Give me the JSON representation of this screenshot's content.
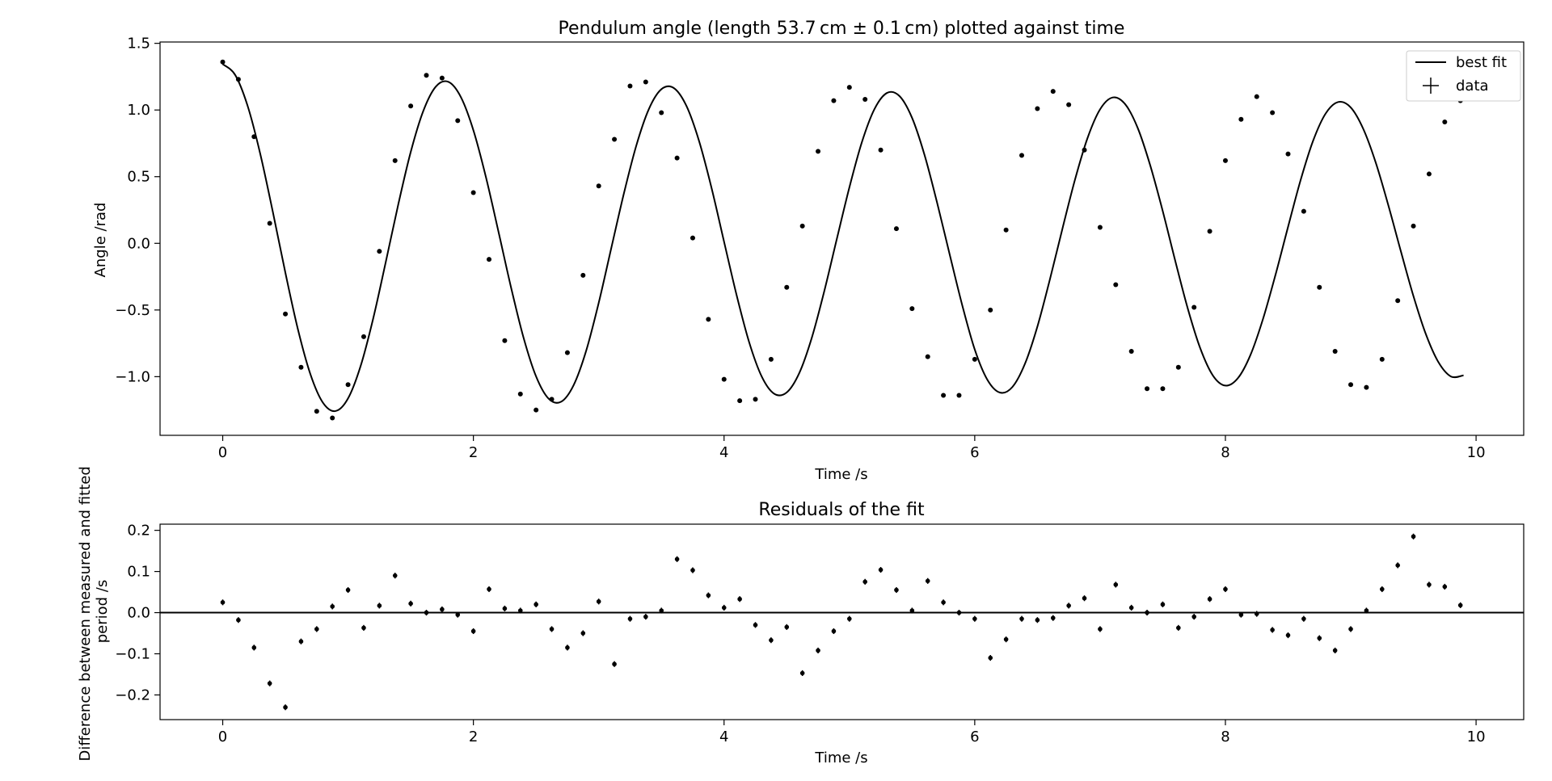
{
  "figure": {
    "background": "#ffffff",
    "foreground": "#000000"
  },
  "chart_data": [
    {
      "type": "line",
      "title": "Pendulum angle (length 53.7 cm ± 0.1 cm) plotted against time",
      "xlabel": "Time /s",
      "ylabel": "Angle /rad",
      "xlim": [
        -0.5,
        10.38
      ],
      "ylim": [
        -1.44,
        1.51
      ],
      "xticks": [
        0,
        2,
        4,
        6,
        8,
        10
      ],
      "xtick_labels": [
        "0",
        "2",
        "4",
        "6",
        "8",
        "10"
      ],
      "yticks": [
        -1.0,
        -0.5,
        0.0,
        0.5,
        1.0,
        1.5
      ],
      "ytick_labels": [
        "−1.0",
        "−0.5",
        "0.0",
        "0.5",
        "1.0",
        "1.5"
      ],
      "grid": false,
      "legend_position": "top-right",
      "legend": [
        "best fit",
        "data"
      ],
      "fit_curve": {
        "name": "best fit",
        "x": [
          0.0,
          0.1,
          0.2,
          0.3,
          0.4,
          0.5,
          0.6,
          0.7,
          0.8,
          0.9,
          1.0,
          1.1,
          1.2,
          1.3,
          1.4,
          1.5,
          1.6,
          1.7,
          1.8,
          1.9,
          2.0,
          2.1,
          2.2,
          2.3,
          2.4,
          2.5,
          2.6,
          2.7,
          2.8,
          2.9,
          3.0,
          3.1,
          3.2,
          3.3,
          3.4,
          3.5,
          3.6,
          3.7,
          3.8,
          3.9,
          4.0,
          4.1,
          4.2,
          4.3,
          4.4,
          4.5,
          4.6,
          4.7,
          4.8,
          4.9,
          5.0,
          5.1,
          5.2,
          5.3,
          5.4,
          5.5,
          5.6,
          5.7,
          5.8,
          5.9,
          6.0,
          6.1,
          6.2,
          6.3,
          6.4,
          6.5,
          6.6,
          6.7,
          6.8,
          6.9,
          7.0,
          7.1,
          7.2,
          7.3,
          7.4,
          7.5,
          7.6,
          7.7,
          7.8,
          7.9,
          8.0,
          8.1,
          8.2,
          8.3,
          8.4,
          8.5,
          8.6,
          8.7,
          8.8,
          8.9,
          9.0,
          9.1,
          9.2,
          9.3,
          9.4,
          9.5,
          9.6,
          9.7,
          9.8,
          9.9
        ],
        "y": [
          1.344,
          1.262,
          1.027,
          0.669,
          0.235,
          -0.221,
          -0.645,
          -0.983,
          -1.196,
          -1.258,
          -1.163,
          -0.921,
          -0.566,
          -0.144,
          0.289,
          0.685,
          0.992,
          1.175,
          1.211,
          1.097,
          0.848,
          0.497,
          0.088,
          -0.329,
          -0.707,
          -0.998,
          -1.165,
          -1.188,
          -1.063,
          -0.805,
          -0.446,
          -0.036,
          0.371,
          0.734,
          1.007,
          1.156,
          1.164,
          1.03,
          0.769,
          0.416,
          0.012,
          -0.388,
          -0.741,
          -0.998,
          -1.128,
          -1.118,
          -0.973,
          -0.708,
          -0.357,
          0.034,
          0.42,
          0.76,
          1.007,
          1.128,
          1.104,
          0.941,
          0.661,
          0.304,
          -0.083,
          -0.463,
          -0.796,
          -1.022,
          -1.119,
          -1.078,
          -0.905,
          -0.624,
          -0.269,
          0.111,
          0.478,
          0.79,
          1.005,
          1.094,
          1.044,
          0.866,
          0.585,
          0.242,
          -0.132,
          -0.49,
          -0.789,
          -0.991,
          -1.067,
          -1.011,
          -0.837,
          -0.567,
          -0.235,
          0.124,
          0.474,
          0.77,
          0.974,
          1.06,
          1.019,
          0.858,
          0.604,
          0.285,
          -0.06,
          -0.395,
          -0.683,
          -0.892,
          -0.999,
          -0.99
        ]
      },
      "series": [
        {
          "name": "data",
          "x": [
            0.0,
            0.125,
            0.25,
            0.375,
            0.5,
            0.625,
            0.75,
            0.875,
            1.0,
            1.125,
            1.25,
            1.375,
            1.5,
            1.625,
            1.75,
            1.875,
            2.0,
            2.125,
            2.25,
            2.375,
            2.5,
            2.625,
            2.75,
            2.875,
            3.0,
            3.125,
            3.25,
            3.375,
            3.5,
            3.625,
            3.75,
            3.875,
            4.0,
            4.125,
            4.25,
            4.375,
            4.5,
            4.625,
            4.75,
            4.875,
            5.0,
            5.125,
            5.25,
            5.375,
            5.5,
            5.625,
            5.75,
            5.875,
            6.0,
            6.125,
            6.25,
            6.375,
            6.5,
            6.625,
            6.75,
            6.875,
            7.0,
            7.125,
            7.25,
            7.375,
            7.5,
            7.625,
            7.75,
            7.875,
            8.0,
            8.125,
            8.25,
            8.375,
            8.5,
            8.625,
            8.75,
            8.875,
            9.0,
            9.125,
            9.25,
            9.375,
            9.5,
            9.625,
            9.75,
            9.875
          ],
          "y": [
            1.36,
            1.23,
            0.8,
            0.15,
            -0.53,
            -0.93,
            -1.26,
            -1.31,
            -1.06,
            -0.7,
            -0.06,
            0.62,
            1.03,
            1.26,
            1.24,
            0.92,
            0.38,
            -0.12,
            -0.73,
            -1.13,
            -1.25,
            -1.17,
            -0.82,
            -0.24,
            0.43,
            0.78,
            1.18,
            1.21,
            0.98,
            0.64,
            0.04,
            -0.57,
            -1.02,
            -1.18,
            -1.17,
            -0.87,
            -0.33,
            0.13,
            0.69,
            1.07,
            1.17,
            1.08,
            0.7,
            0.11,
            -0.49,
            -0.85,
            -1.14,
            -1.14,
            -0.87,
            -0.5,
            0.1,
            0.66,
            1.01,
            1.14,
            1.04,
            0.7,
            0.12,
            -0.31,
            -0.81,
            -1.09,
            -1.09,
            -0.93,
            -0.48,
            0.09,
            0.62,
            0.93,
            1.1,
            0.98,
            0.67,
            0.24,
            -0.33,
            -0.81,
            -1.06,
            -1.08,
            -0.87,
            -0.43,
            0.13,
            0.52,
            0.91,
            1.07
          ]
        }
      ]
    },
    {
      "type": "scatter",
      "title": "Residuals of the fit",
      "xlabel": "Time /s",
      "ylabel": "Difference between measured and fitted period /s",
      "ylabel_lines": [
        "Difference between measured and fitted",
        "period /s"
      ],
      "xlim": [
        -0.5,
        10.38
      ],
      "ylim": [
        -0.26,
        0.215
      ],
      "xticks": [
        0,
        2,
        4,
        6,
        8,
        10
      ],
      "xtick_labels": [
        "0",
        "2",
        "4",
        "6",
        "8",
        "10"
      ],
      "yticks": [
        -0.2,
        -0.1,
        0.0,
        0.1,
        0.2
      ],
      "ytick_labels": [
        "−0.2",
        "−0.1",
        "0.0",
        "0.1",
        "0.2"
      ],
      "grid": false,
      "reference_line": 0.0,
      "error_bar_half_width": 0.007,
      "series": [
        {
          "name": "residuals",
          "x": [
            0.0,
            0.125,
            0.25,
            0.375,
            0.5,
            0.625,
            0.75,
            0.875,
            1.0,
            1.125,
            1.25,
            1.375,
            1.5,
            1.625,
            1.75,
            1.875,
            2.0,
            2.125,
            2.25,
            2.375,
            2.5,
            2.625,
            2.75,
            2.875,
            3.0,
            3.125,
            3.25,
            3.375,
            3.5,
            3.625,
            3.75,
            3.875,
            4.0,
            4.125,
            4.25,
            4.375,
            4.5,
            4.625,
            4.75,
            4.875,
            5.0,
            5.125,
            5.25,
            5.375,
            5.5,
            5.625,
            5.75,
            5.875,
            6.0,
            6.125,
            6.25,
            6.375,
            6.5,
            6.625,
            6.75,
            6.875,
            7.0,
            7.125,
            7.25,
            7.375,
            7.5,
            7.625,
            7.75,
            7.875,
            8.0,
            8.125,
            8.25,
            8.375,
            8.5,
            8.625,
            8.75,
            8.875,
            9.0,
            9.125,
            9.25,
            9.375,
            9.5,
            9.625,
            9.75,
            9.875
          ],
          "y": [
            0.025,
            -0.018,
            -0.085,
            -0.172,
            -0.23,
            -0.07,
            -0.04,
            0.015,
            0.055,
            -0.037,
            0.017,
            0.09,
            0.022,
            0.0,
            0.008,
            -0.005,
            -0.045,
            0.057,
            0.01,
            0.005,
            0.02,
            -0.04,
            -0.085,
            -0.05,
            0.027,
            -0.125,
            -0.015,
            -0.01,
            0.005,
            0.13,
            0.103,
            0.042,
            0.012,
            0.033,
            -0.03,
            -0.067,
            -0.035,
            -0.147,
            -0.092,
            -0.045,
            -0.015,
            0.075,
            0.104,
            0.055,
            0.005,
            0.077,
            0.025,
            0.0,
            -0.015,
            -0.11,
            -0.065,
            -0.015,
            -0.018,
            -0.013,
            0.017,
            0.035,
            -0.04,
            0.068,
            0.012,
            0.0,
            0.02,
            -0.037,
            -0.01,
            0.033,
            0.057,
            -0.005,
            -0.003,
            -0.042,
            -0.055,
            -0.015,
            -0.062,
            -0.092,
            -0.04,
            0.005,
            0.057,
            0.115,
            0.185,
            0.068,
            0.063,
            0.018
          ]
        }
      ]
    }
  ]
}
